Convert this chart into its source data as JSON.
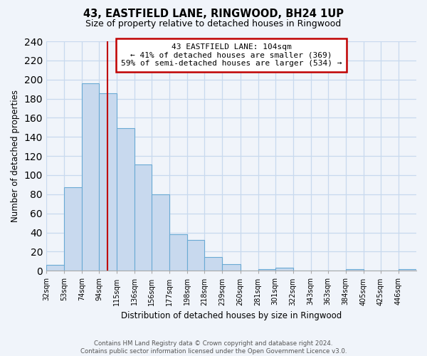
{
  "title": "43, EASTFIELD LANE, RINGWOOD, BH24 1UP",
  "subtitle": "Size of property relative to detached houses in Ringwood",
  "xlabel": "Distribution of detached houses by size in Ringwood",
  "ylabel": "Number of detached properties",
  "bin_labels": [
    "32sqm",
    "53sqm",
    "74sqm",
    "94sqm",
    "115sqm",
    "136sqm",
    "156sqm",
    "177sqm",
    "198sqm",
    "218sqm",
    "239sqm",
    "260sqm",
    "281sqm",
    "301sqm",
    "322sqm",
    "343sqm",
    "363sqm",
    "384sqm",
    "405sqm",
    "425sqm",
    "446sqm"
  ],
  "bar_values": [
    6,
    87,
    196,
    186,
    149,
    111,
    80,
    38,
    32,
    14,
    7,
    0,
    2,
    3,
    0,
    0,
    0,
    2,
    0,
    0,
    2
  ],
  "bar_color": "#c8d9ee",
  "bar_edge_color": "#6aaad4",
  "grid_color": "#c8d9ee",
  "annotation_line1": "43 EASTFIELD LANE: 104sqm",
  "annotation_line2": "← 41% of detached houses are smaller (369)",
  "annotation_line3": "59% of semi-detached houses are larger (534) →",
  "annotation_box_color": "white",
  "annotation_box_edge_color": "#c00000",
  "vline_x": 104,
  "vline_color": "#c00000",
  "ylim": [
    0,
    240
  ],
  "yticks": [
    0,
    20,
    40,
    60,
    80,
    100,
    120,
    140,
    160,
    180,
    200,
    220,
    240
  ],
  "bin_edges": [
    32,
    53,
    74,
    94,
    115,
    136,
    156,
    177,
    198,
    218,
    239,
    260,
    281,
    301,
    322,
    343,
    363,
    384,
    405,
    425,
    446,
    467
  ],
  "footer_text": "Contains HM Land Registry data © Crown copyright and database right 2024.\nContains public sector information licensed under the Open Government Licence v3.0.",
  "background_color": "#f0f4fa"
}
